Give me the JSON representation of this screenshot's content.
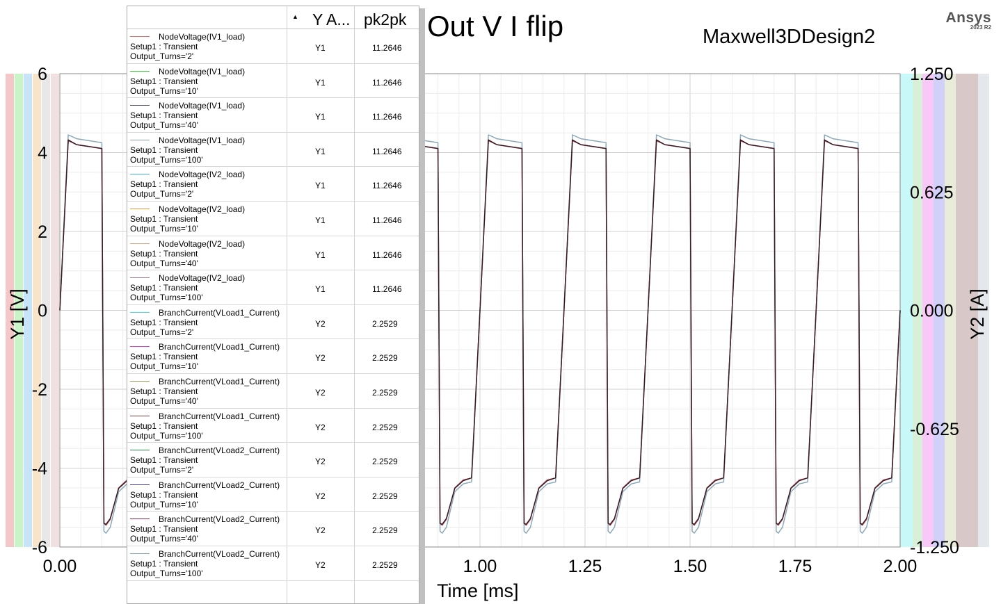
{
  "header": {
    "title": "Out V I flip",
    "design_name": "Maxwell3DDesign2",
    "brand": "Ansys",
    "brand_version": "2023 R2"
  },
  "legend": {
    "col_yaxis": "Y A...",
    "col_pk2pk": "pk2pk",
    "rows": [
      {
        "name": "NodeVoltage(IV1_load)",
        "setup": "Setup1 : Transient",
        "turns": "Output_Turns='2'",
        "yaxis": "Y1",
        "pk2pk": "11.2646",
        "color": "#e07070"
      },
      {
        "name": "NodeVoltage(IV1_load)",
        "setup": "Setup1 : Transient",
        "turns": "Output_Turns='10'",
        "yaxis": "Y1",
        "pk2pk": "11.2646",
        "color": "#33cc33"
      },
      {
        "name": "NodeVoltage(IV1_load)",
        "setup": "Setup1 : Transient",
        "turns": "Output_Turns='40'",
        "yaxis": "Y1",
        "pk2pk": "11.2646",
        "color": "#404060"
      },
      {
        "name": "NodeVoltage(IV1_load)",
        "setup": "Setup1 : Transient",
        "turns": "Output_Turns='100'",
        "yaxis": "Y1",
        "pk2pk": "11.2646",
        "color": "#8899aa"
      },
      {
        "name": "NodeVoltage(IV2_load)",
        "setup": "Setup1 : Transient",
        "turns": "Output_Turns='2'",
        "yaxis": "Y1",
        "pk2pk": "11.2646",
        "color": "#44aadd"
      },
      {
        "name": "NodeVoltage(IV2_load)",
        "setup": "Setup1 : Transient",
        "turns": "Output_Turns='10'",
        "yaxis": "Y1",
        "pk2pk": "11.2646",
        "color": "#ee9933"
      },
      {
        "name": "NodeVoltage(IV2_load)",
        "setup": "Setup1 : Transient",
        "turns": "Output_Turns='40'",
        "yaxis": "Y1",
        "pk2pk": "11.2646",
        "color": "#d4aa88"
      },
      {
        "name": "NodeVoltage(IV2_load)",
        "setup": "Setup1 : Transient",
        "turns": "Output_Turns='100'",
        "yaxis": "Y1",
        "pk2pk": "11.2646",
        "color": "#aa8899"
      },
      {
        "name": "BranchCurrent(VLoad1_Current)",
        "setup": "Setup1 : Transient",
        "turns": "Output_Turns='2'",
        "yaxis": "Y2",
        "pk2pk": "2.2529",
        "color": "#44dddd"
      },
      {
        "name": "BranchCurrent(VLoad1_Current)",
        "setup": "Setup1 : Transient",
        "turns": "Output_Turns='10'",
        "yaxis": "Y2",
        "pk2pk": "2.2529",
        "color": "#dd44cc"
      },
      {
        "name": "BranchCurrent(VLoad1_Current)",
        "setup": "Setup1 : Transient",
        "turns": "Output_Turns='40'",
        "yaxis": "Y2",
        "pk2pk": "2.2529",
        "color": "#a0a060"
      },
      {
        "name": "BranchCurrent(VLoad1_Current)",
        "setup": "Setup1 : Transient",
        "turns": "Output_Turns='100'",
        "yaxis": "Y2",
        "pk2pk": "2.2529",
        "color": "#704040"
      },
      {
        "name": "BranchCurrent(VLoad2_Current)",
        "setup": "Setup1 : Transient",
        "turns": "Output_Turns='2'",
        "yaxis": "Y2",
        "pk2pk": "2.2529",
        "color": "#228844"
      },
      {
        "name": "BranchCurrent(VLoad2_Current)",
        "setup": "Setup1 : Transient",
        "turns": "Output_Turns='10'",
        "yaxis": "Y2",
        "pk2pk": "2.2529",
        "color": "#333399"
      },
      {
        "name": "BranchCurrent(VLoad2_Current)",
        "setup": "Setup1 : Transient",
        "turns": "Output_Turns='40'",
        "yaxis": "Y2",
        "pk2pk": "2.2529",
        "color": "#882244"
      },
      {
        "name": "BranchCurrent(VLoad2_Current)",
        "setup": "Setup1 : Transient",
        "turns": "Output_Turns='100'",
        "yaxis": "Y2",
        "pk2pk": "2.2529",
        "color": "#8aa8b8"
      }
    ]
  },
  "chart_data": {
    "type": "line",
    "title": "Out V I flip",
    "xlabel": "Time [ms]",
    "ylabel": "Y1 [V]",
    "y2label": "Y2 [A]",
    "xlim": [
      0,
      2
    ],
    "ylim": [
      -6,
      6
    ],
    "y2lim": [
      -1.25,
      1.25
    ],
    "x_ticks": [
      "0.00",
      "0.25",
      "0.50",
      "0.75",
      "1.00",
      "1.25",
      "1.50",
      "1.75",
      "2.00"
    ],
    "y_ticks": [
      "6",
      "4",
      "2",
      "0",
      "-2",
      "-4",
      "-6"
    ],
    "y2_ticks": [
      "1.250",
      "0.625",
      "0.000",
      "-0.625",
      "-1.250"
    ],
    "grid": true,
    "period_ms": 0.2,
    "series": [
      {
        "name": "NodeVoltage(IV1_load) Output_Turns='2'",
        "axis": "Y1",
        "color": "#b05a6a",
        "x": [
          0,
          0.02,
          0.04,
          0.1,
          0.105,
          0.11,
          0.12,
          0.14,
          0.16,
          0.18,
          0.2
        ],
        "y": [
          0,
          4.3,
          4.2,
          4.1,
          -5.4,
          -5.45,
          -5.3,
          -4.5,
          -4.3,
          -4.25,
          0
        ]
      },
      {
        "name": "NodeVoltage(IV1_load) Output_Turns='100'",
        "axis": "Y1",
        "color": "#8aa8b8",
        "x": [
          0,
          0.02,
          0.04,
          0.1,
          0.105,
          0.11,
          0.12,
          0.14,
          0.16,
          0.18,
          0.2
        ],
        "y": [
          0,
          4.45,
          4.35,
          4.25,
          -5.6,
          -5.65,
          -5.5,
          -4.6,
          -4.4,
          -4.35,
          0
        ]
      },
      {
        "name": "BranchCurrent(VLoad1_Current) Output_Turns='100'",
        "axis": "Y2",
        "color": "#3a1a20",
        "x": [
          0,
          0.02,
          0.04,
          0.1,
          0.105,
          0.11,
          0.12,
          0.14,
          0.16,
          0.18,
          0.2
        ],
        "y": [
          0,
          0.9,
          0.875,
          0.855,
          -1.125,
          -1.13,
          -1.1,
          -0.94,
          -0.9,
          -0.885,
          0
        ]
      }
    ]
  }
}
